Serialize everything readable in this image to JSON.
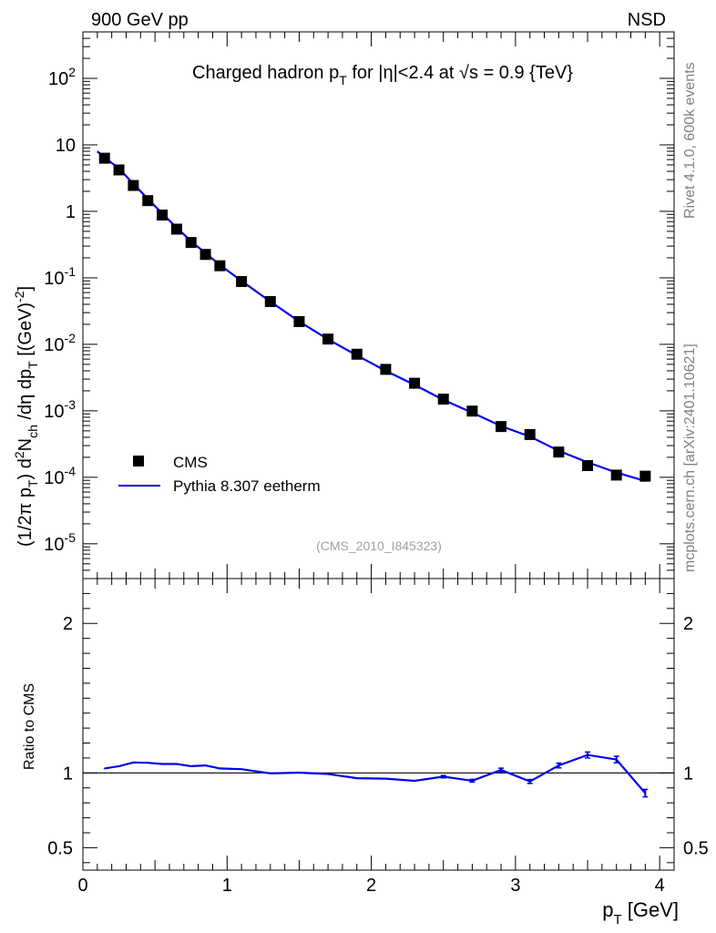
{
  "header": {
    "left": "900 GeV pp",
    "right": "NSD"
  },
  "side": {
    "rivet": "Rivet 4.1.0,  600k events",
    "mcplots": "mcplots.cern.ch [arXiv:2401.10621]"
  },
  "analysis_id": "(CMS_2010_I845323)",
  "colors": {
    "mc": "#0000ee",
    "data": "#000000",
    "side_text": "#808080",
    "id_text": "#a0a0a0"
  },
  "chart_data": [
    {
      "type": "scatter",
      "title": "Charged hadron p_T for |η|<2.4 at √s = 0.9 {TeV}",
      "xlabel": "p_T [GeV]",
      "ylabel": "(1/2π p_T) d²N_ch/dη dp_T [(GeV)⁻²]",
      "yscale": "log",
      "xlim": [
        0,
        4.1
      ],
      "ylim": [
        3e-06,
        500
      ],
      "x_ticks": [
        0,
        1,
        2,
        3,
        4
      ],
      "legend": {
        "position": "bottom-left",
        "entries": [
          "CMS",
          "Pythia 8.307 eetherm"
        ]
      },
      "series": [
        {
          "name": "CMS",
          "marker": "square",
          "x": [
            0.15,
            0.25,
            0.35,
            0.45,
            0.55,
            0.65,
            0.75,
            0.85,
            0.95,
            1.1,
            1.3,
            1.5,
            1.7,
            1.9,
            2.1,
            2.3,
            2.5,
            2.7,
            2.9,
            3.1,
            3.3,
            3.5,
            3.7,
            3.9
          ],
          "values": [
            6.3,
            4.2,
            2.45,
            1.45,
            0.88,
            0.54,
            0.34,
            0.225,
            0.152,
            0.088,
            0.044,
            0.022,
            0.012,
            0.0071,
            0.0042,
            0.0026,
            0.0015,
            0.00099,
            0.00058,
            0.00044,
            0.00024,
            0.00015,
            0.000108,
            0.000104
          ]
        },
        {
          "name": "Pythia 8.307 eetherm",
          "marker": "line",
          "x": [
            0.1,
            0.15,
            0.25,
            0.35,
            0.45,
            0.55,
            0.65,
            0.75,
            0.85,
            0.95,
            1.1,
            1.3,
            1.5,
            1.7,
            1.9,
            2.1,
            2.3,
            2.5,
            2.7,
            2.9,
            3.1,
            3.3,
            3.5,
            3.7,
            3.9
          ],
          "values": [
            8.0,
            6.5,
            4.4,
            2.6,
            1.55,
            0.93,
            0.57,
            0.355,
            0.237,
            0.156,
            0.09,
            0.044,
            0.0221,
            0.0119,
            0.0068,
            0.004,
            0.00246,
            0.00146,
            0.00094,
            0.00059,
            0.00041,
            0.00025,
            0.000168,
            0.000118,
            8.8e-05
          ]
        }
      ]
    },
    {
      "type": "line",
      "ylabel": "Ratio to CMS",
      "xlabel": "p_T [GeV]",
      "xlim": [
        0,
        4.1
      ],
      "ylim": [
        0.35,
        2.3
      ],
      "x_ticks": [
        0,
        1,
        2,
        3,
        4
      ],
      "y_ticks": [
        0.5,
        1,
        2
      ],
      "reference_line": 1,
      "series": [
        {
          "name": "Pythia 8.307 eetherm",
          "x": [
            0.15,
            0.25,
            0.35,
            0.45,
            0.55,
            0.65,
            0.75,
            0.85,
            0.95,
            1.1,
            1.3,
            1.5,
            1.7,
            1.9,
            2.1,
            2.3,
            2.5,
            2.7,
            2.9,
            3.1,
            3.3,
            3.5,
            3.7,
            3.9
          ],
          "values": [
            1.03,
            1.045,
            1.07,
            1.068,
            1.06,
            1.06,
            1.045,
            1.05,
            1.03,
            1.025,
            0.997,
            1.002,
            0.993,
            0.965,
            0.962,
            0.947,
            0.975,
            0.948,
            1.02,
            0.943,
            1.05,
            1.12,
            1.09,
            0.865
          ],
          "errors": [
            0.003,
            0.003,
            0.003,
            0.003,
            0.003,
            0.003,
            0.003,
            0.003,
            0.003,
            0.003,
            0.003,
            0.003,
            0.004,
            0.005,
            0.005,
            0.006,
            0.008,
            0.009,
            0.012,
            0.013,
            0.016,
            0.02,
            0.022,
            0.025
          ]
        }
      ]
    }
  ]
}
